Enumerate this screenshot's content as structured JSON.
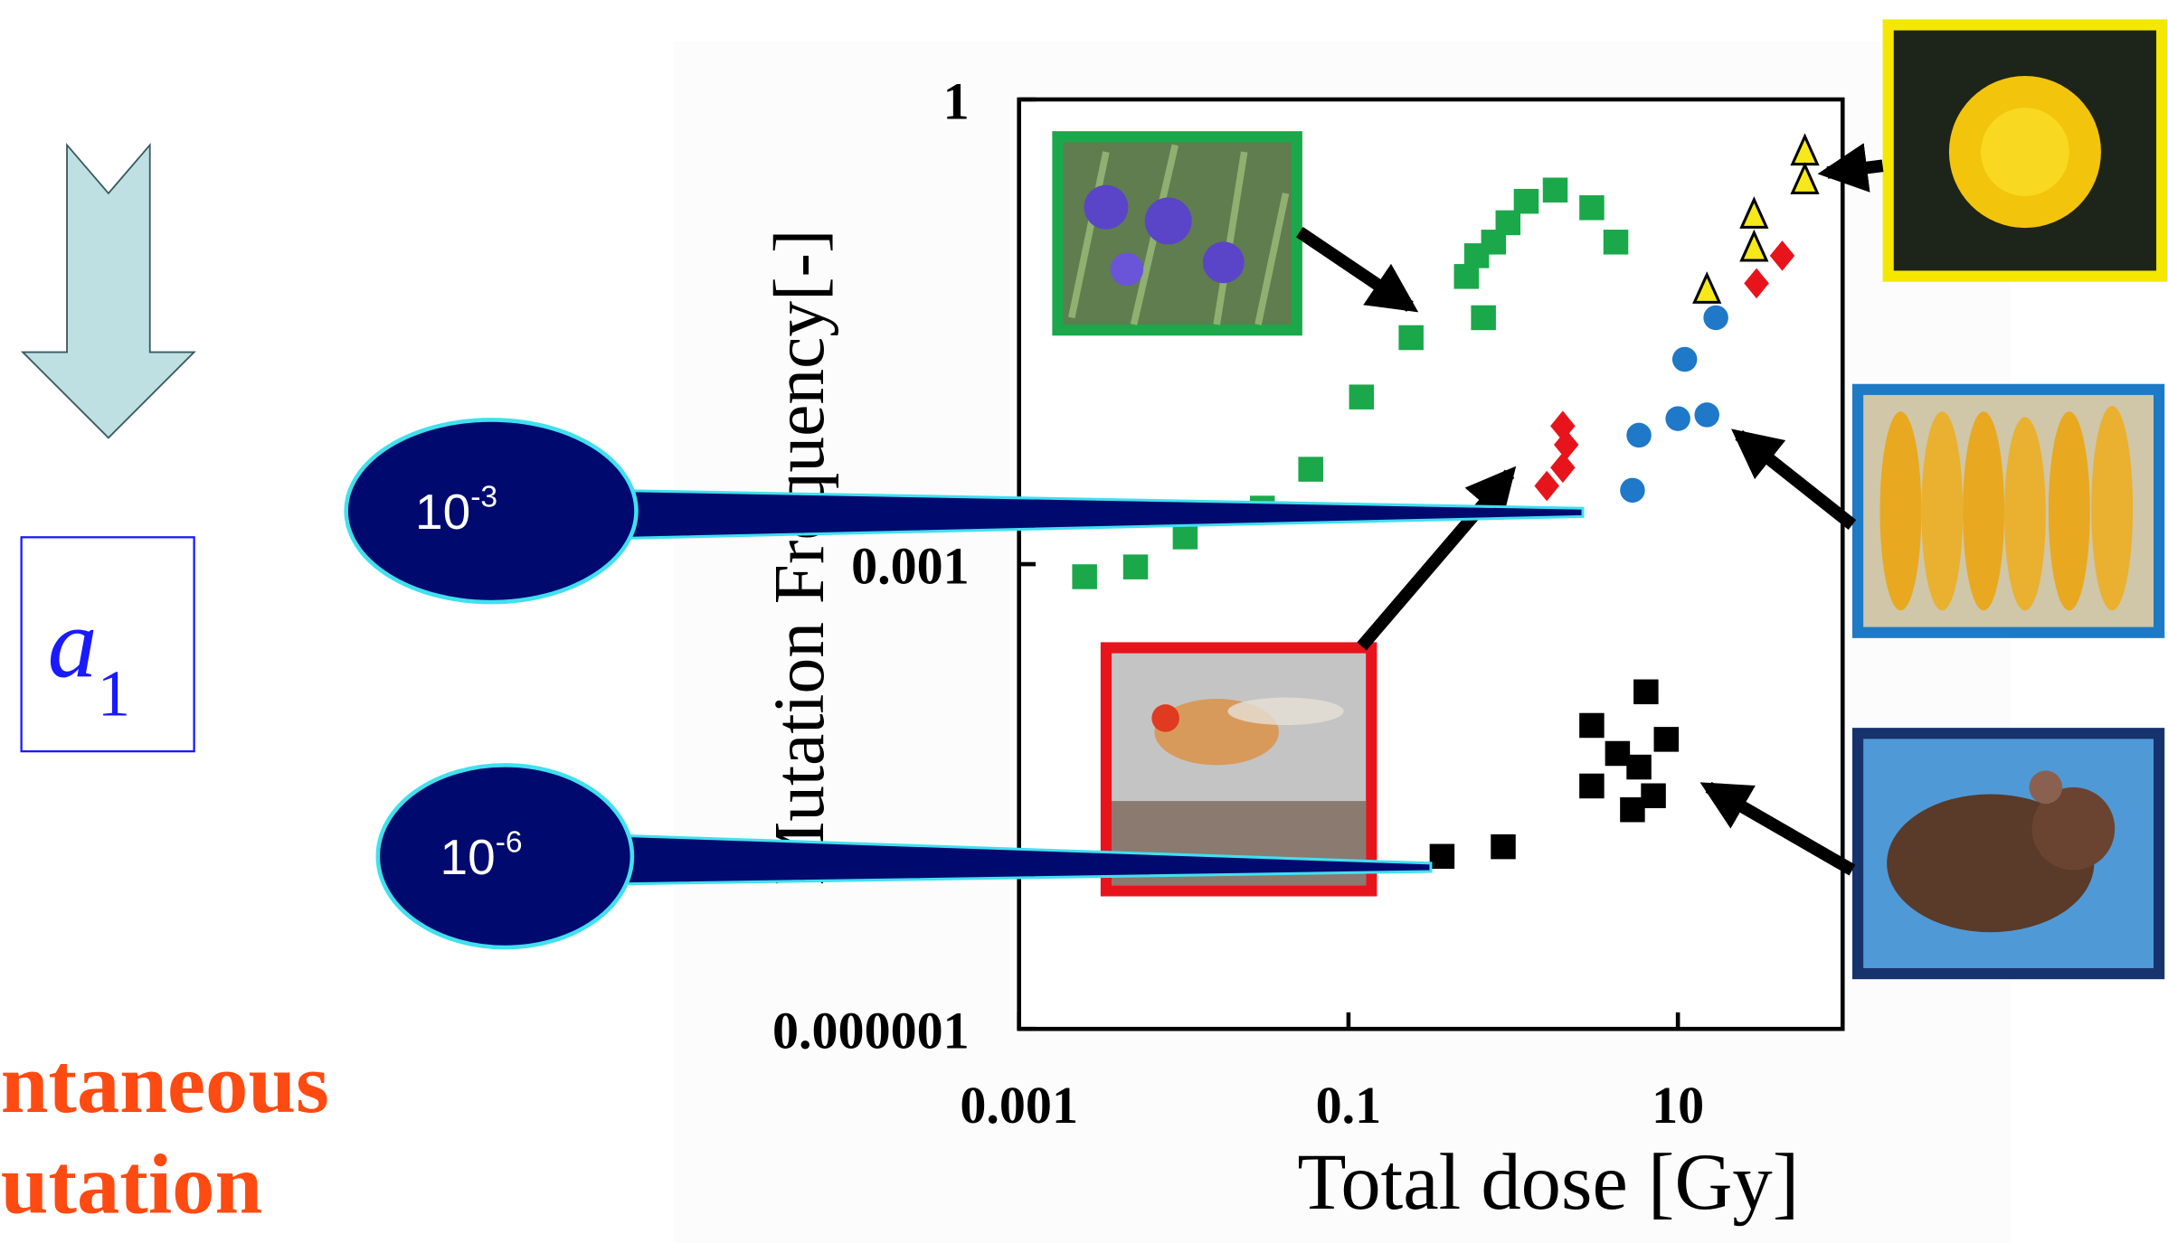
{
  "symbol": {
    "base": "a",
    "subscript": "1"
  },
  "caption": [
    "ntaneous",
    "utation"
  ],
  "callouts": [
    {
      "base": "10",
      "exponent": "-3"
    },
    {
      "base": "10",
      "exponent": "-6"
    }
  ],
  "chart_data": {
    "type": "scatter",
    "x_label": "Total dose [Gy]",
    "y_label": "Mutation Frequency[-]",
    "x_scale": "log",
    "y_scale": "log",
    "xlim": [
      0.001,
      100
    ],
    "ylim": [
      1e-06,
      1
    ],
    "xticks": [
      0.001,
      0.1,
      10
    ],
    "yticks": [
      1e-06,
      0.001,
      1
    ],
    "series": [
      {
        "color": "#1aa84a",
        "marker": "square",
        "x": [
          0.0025,
          0.0051,
          0.0102,
          0.03,
          0.059,
          0.12,
          0.24,
          0.52,
          0.6,
          0.66,
          0.76,
          0.93,
          1.2,
          1.8,
          3.0,
          4.2
        ],
        "values": [
          0.00083,
          0.00096,
          0.0015,
          0.0023,
          0.0041,
          0.012,
          0.029,
          0.072,
          0.098,
          0.039,
          0.12,
          0.16,
          0.22,
          0.26,
          0.2,
          0.12
        ]
      },
      {
        "color": "#e8141c",
        "marker": "diamond",
        "x": [
          1.6,
          2.0,
          2.1,
          2.0,
          30,
          43
        ],
        "values": [
          0.0032,
          0.0042,
          0.0059,
          0.0078,
          0.065,
          0.098
        ]
      },
      {
        "color": "#1f78c8",
        "marker": "circle",
        "x": [
          5.3,
          5.8,
          10,
          15,
          11,
          17
        ],
        "values": [
          0.003,
          0.0068,
          0.0087,
          0.0092,
          0.021,
          0.039
        ]
      },
      {
        "color": "#f7e81a",
        "marker": "triangle",
        "x": [
          15,
          29,
          29,
          59,
          59
        ],
        "values": [
          0.059,
          0.18,
          0.11,
          0.46,
          0.3
        ]
      },
      {
        "color": "#000000",
        "marker": "square",
        "x": [
          0.37,
          0.87,
          3.0,
          3.0,
          4.3,
          5.8,
          6.4,
          8.5,
          7.1,
          5.3
        ],
        "values": [
          1.3e-05,
          1.5e-05,
          9.1e-05,
          3.7e-05,
          6e-05,
          4.9e-05,
          0.00015,
          7.4e-05,
          3.2e-05,
          2.6e-05
        ]
      }
    ]
  }
}
